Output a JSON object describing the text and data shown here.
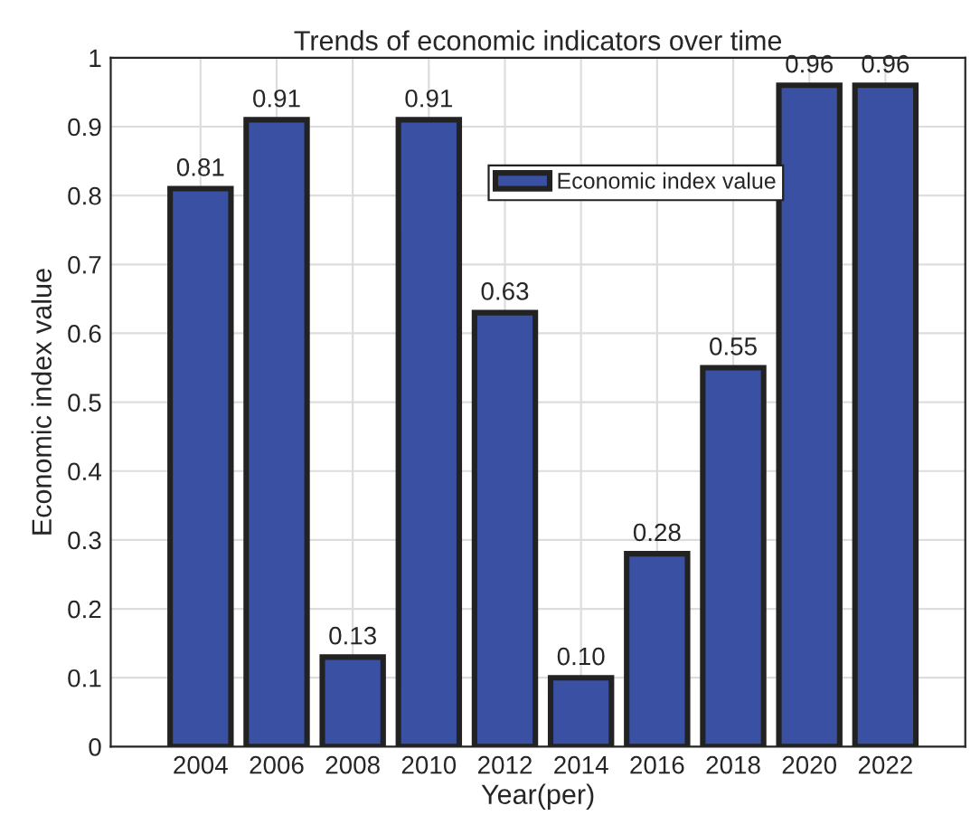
{
  "chart_data": {
    "type": "bar",
    "title": "Trends of economic indicators over time",
    "xlabel": "Year(per)",
    "ylabel": "Economic index value",
    "categories": [
      "2004",
      "2006",
      "2008",
      "2010",
      "2012",
      "2014",
      "2016",
      "2018",
      "2020",
      "2022"
    ],
    "series": [
      {
        "name": "Economic index value",
        "color": "#3a50a2",
        "values": [
          0.81,
          0.91,
          0.13,
          0.91,
          0.63,
          0.1,
          0.28,
          0.55,
          0.96,
          0.96
        ]
      }
    ],
    "value_labels": [
      "0.81",
      "0.91",
      "0.13",
      "0.91",
      "0.63",
      "0.10",
      "0.28",
      "0.55",
      "0.96",
      "0.96"
    ],
    "ylim": [
      0,
      1
    ],
    "yticks": [
      0,
      0.1,
      0.2,
      0.3,
      0.4,
      0.5,
      0.6,
      0.7,
      0.8,
      0.9,
      1
    ],
    "grid": true,
    "legend": "top right"
  }
}
